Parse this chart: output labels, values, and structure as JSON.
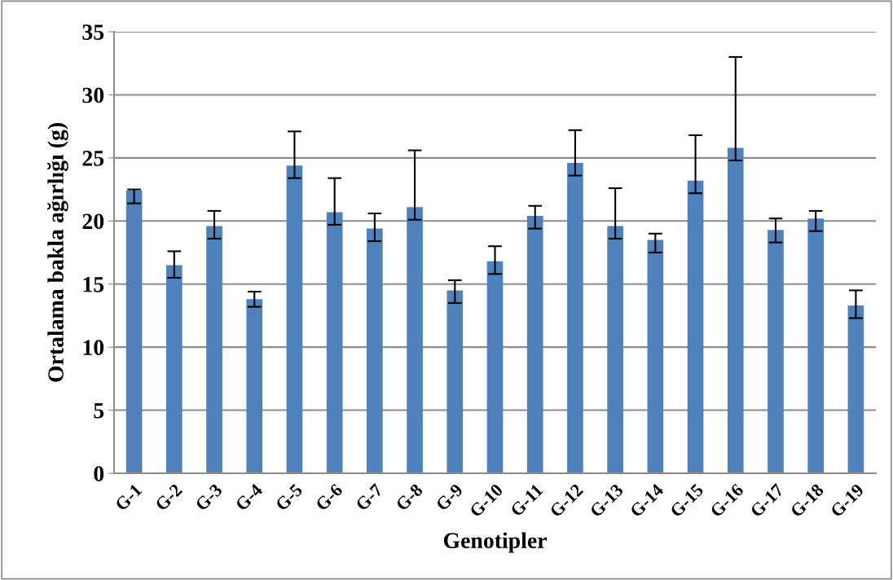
{
  "chart_data": {
    "type": "bar",
    "xlabel": "Genotipler",
    "ylabel": "Ortalama bakla ağırlığı (g)",
    "categories": [
      "G-1",
      "G-2",
      "G-3",
      "G-4",
      "G-5",
      "G-6",
      "G-7",
      "G-8",
      "G-9",
      "G-10",
      "G-11",
      "G-12",
      "G-13",
      "G-14",
      "G-15",
      "G-16",
      "G-17",
      "G-18",
      "G-19"
    ],
    "values": [
      22.4,
      16.5,
      19.6,
      13.8,
      24.4,
      20.7,
      19.4,
      21.1,
      14.5,
      16.8,
      20.4,
      24.6,
      19.6,
      18.5,
      23.2,
      25.8,
      19.3,
      20.2,
      13.3
    ],
    "errors": [
      [
        21.4,
        22.5
      ],
      [
        15.5,
        17.6
      ],
      [
        18.6,
        20.8
      ],
      [
        13.2,
        14.4
      ],
      [
        23.4,
        27.1
      ],
      [
        19.7,
        23.4
      ],
      [
        18.4,
        20.6
      ],
      [
        20.1,
        25.6
      ],
      [
        13.5,
        15.3
      ],
      [
        15.8,
        18.0
      ],
      [
        19.4,
        21.2
      ],
      [
        23.6,
        27.2
      ],
      [
        18.6,
        22.6
      ],
      [
        17.5,
        19.0
      ],
      [
        22.2,
        26.8
      ],
      [
        24.8,
        33.0
      ],
      [
        18.3,
        20.2
      ],
      [
        19.2,
        20.8
      ],
      [
        12.3,
        14.5
      ]
    ],
    "color": "#4f81bd",
    "ylim": [
      0,
      35
    ],
    "yticks": [
      0,
      5,
      10,
      15,
      20,
      25,
      30,
      35
    ],
    "grid": "y"
  }
}
